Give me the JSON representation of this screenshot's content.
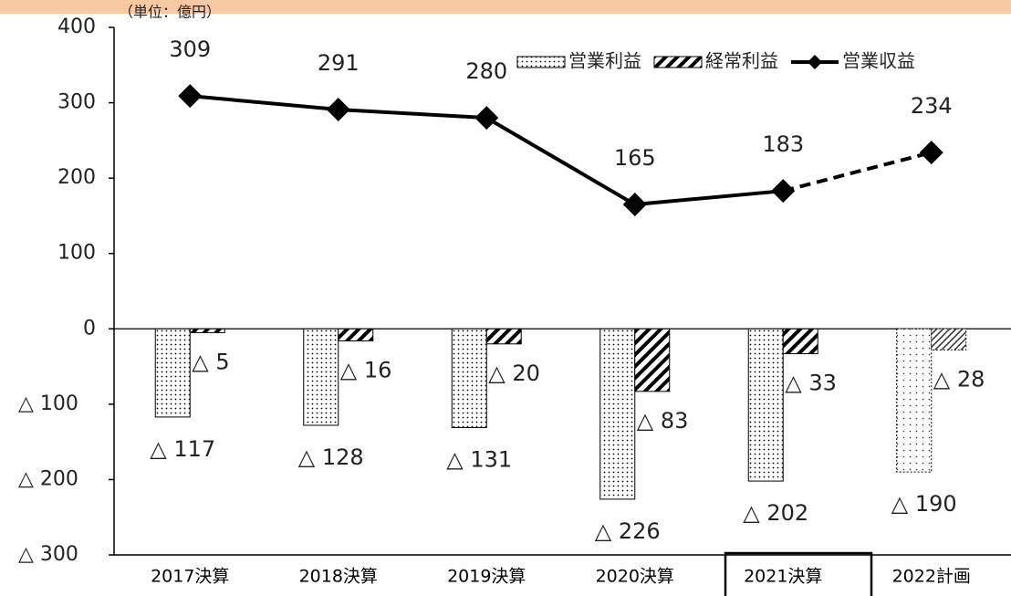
{
  "chart_data": {
    "type": "bar_line",
    "unit_label": "（単位：億円）",
    "categories": [
      "2017決算",
      "2018決算",
      "2019決算",
      "2020決算",
      "2021決算",
      "2022計画"
    ],
    "series": [
      {
        "name": "営業利益",
        "type": "bar",
        "color": "#000000",
        "values": [
          -117,
          -128,
          -131,
          -226,
          -202,
          -190
        ],
        "value_labels": [
          "△ 117",
          "△ 128",
          "△ 131",
          "△ 226",
          "△ 202",
          "△ 190"
        ]
      },
      {
        "name": "経常利益",
        "type": "bar",
        "color": "#000000",
        "values": [
          -5,
          -16,
          -20,
          -83,
          -33,
          -28
        ],
        "value_labels": [
          "△ 5",
          "△ 16",
          "△ 20",
          "△ 83",
          "△ 33",
          "△ 28"
        ]
      },
      {
        "name": "営業収益",
        "type": "line",
        "color": "#000000",
        "values": [
          309,
          291,
          280,
          165,
          183,
          234
        ]
      }
    ],
    "ylim": [
      -300,
      400
    ],
    "yticks": [
      {
        "value": -300,
        "label": "△ 300"
      },
      {
        "value": -200,
        "label": "△ 200"
      },
      {
        "value": -100,
        "label": "△ 100"
      },
      0,
      100,
      200,
      300,
      400
    ],
    "legend": "top-right"
  }
}
